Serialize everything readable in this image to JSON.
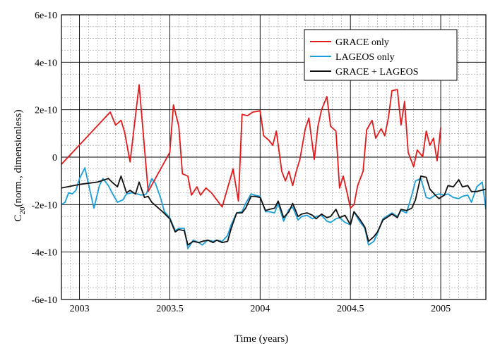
{
  "chart_data": {
    "type": "line",
    "xlabel": "Time (years)",
    "ylabel": "C20 (norm., dimensionless)",
    "ylabel_main": "C",
    "ylabel_sub": "20",
    "ylabel_rest": "(norm., dimensionless)",
    "xlim": [
      2002.9,
      2005.25
    ],
    "ylim": [
      -6e-10,
      6e-10
    ],
    "x_ticks": [
      2003,
      2003.5,
      2004,
      2004.5,
      2005
    ],
    "x_tick_labels": [
      "2003",
      "2003.5",
      "2004",
      "2004.5",
      "2005"
    ],
    "y_ticks": [
      6e-10,
      4e-10,
      2e-10,
      0,
      -2e-10,
      -4e-10,
      -6e-10
    ],
    "y_tick_labels": [
      "6e-10",
      "4e-10",
      "2e-10",
      "0",
      "-2e-10",
      "-4e-10",
      "-6e-10"
    ],
    "grid": true,
    "legend_position": "top-right",
    "series": [
      {
        "name": "GRACE only",
        "color": "#e31a1c",
        "x": [
          2002.9,
          2003.17,
          2003.2,
          2003.23,
          2003.25,
          2003.28,
          2003.33,
          2003.38,
          2003.5,
          2003.52,
          2003.55,
          2003.57,
          2003.6,
          2003.62,
          2003.65,
          2003.67,
          2003.7,
          2003.73,
          2003.76,
          2003.79,
          2003.82,
          2003.85,
          2003.88,
          2003.9,
          2003.93,
          2003.96,
          2004.0,
          2004.02,
          2004.05,
          2004.07,
          2004.09,
          2004.12,
          2004.14,
          2004.16,
          2004.18,
          2004.2,
          2004.22,
          2004.25,
          2004.27,
          2004.3,
          2004.32,
          2004.34,
          2004.37,
          2004.39,
          2004.42,
          2004.44,
          2004.46,
          2004.48,
          2004.5,
          2004.52,
          2004.54,
          2004.57,
          2004.59,
          2004.62,
          2004.64,
          2004.67,
          2004.69,
          2004.71,
          2004.73,
          2004.76,
          2004.78,
          2004.8,
          2004.82,
          2004.85,
          2004.87,
          2004.9,
          2004.92,
          2004.94,
          2004.96,
          2004.98,
          2005.0,
          2005.02,
          2005.05,
          2005.07,
          2005.09,
          2005.11,
          2005.14,
          2005.16,
          2005.18
        ],
        "values": [
          -3e-11,
          1.9e-10,
          1.35e-10,
          1.55e-10,
          1.05e-10,
          -2e-11,
          3.05e-10,
          -1.45e-10,
          2e-11,
          2.2e-10,
          1.3e-10,
          -7e-11,
          -8e-11,
          -1.6e-10,
          -1.25e-10,
          -1.6e-10,
          -1.3e-10,
          -1.5e-10,
          -1.8e-10,
          -2.1e-10,
          -1.3e-10,
          -5e-11,
          -1.85e-10,
          1.8e-10,
          1.75e-10,
          1.9e-10,
          1.95e-10,
          9e-11,
          7e-11,
          5e-11,
          1.1e-10,
          -6e-11,
          -1e-10,
          -6e-11,
          -1.2e-10,
          -6e-11,
          -1e-11,
          1.2e-10,
          1.65e-10,
          -1e-11,
          1.3e-10,
          2e-10,
          2.55e-10,
          1.3e-10,
          1.1e-10,
          -1.3e-10,
          -8e-11,
          -1.45e-10,
          -2.15e-10,
          -2e-10,
          -1.2e-10,
          -6e-11,
          1.15e-10,
          1.55e-10,
          8e-11,
          1.2e-10,
          9e-11,
          1.65e-10,
          2.8e-10,
          2.85e-10,
          1.35e-10,
          2.35e-10,
          2e-11,
          -4e-11,
          3e-11,
          2e-12,
          1.1e-10,
          5e-11,
          8e-11,
          -1.5e-11,
          1.25e-10,
          null,
          null,
          null,
          null,
          null,
          null,
          null,
          null
        ]
      },
      {
        "name": "LAGEOS only",
        "color": "#1a9fd9",
        "x": [
          2002.9,
          2002.92,
          2002.94,
          2002.96,
          2002.98,
          2003.0,
          2003.03,
          2003.05,
          2003.08,
          2003.11,
          2003.13,
          2003.16,
          2003.18,
          2003.21,
          2003.24,
          2003.26,
          2003.29,
          2003.32,
          2003.34,
          2003.37,
          2003.4,
          2003.42,
          2003.45,
          2003.47,
          2003.5,
          2003.53,
          2003.55,
          2003.58,
          2003.6,
          2003.63,
          2003.66,
          2003.68,
          2003.71,
          2003.74,
          2003.76,
          2003.79,
          2003.82,
          2003.84,
          2003.87,
          2003.9,
          2003.92,
          2003.95,
          2003.97,
          2004.0,
          2004.03,
          2004.05,
          2004.08,
          2004.1,
          2004.13,
          2004.16,
          2004.18,
          2004.21,
          2004.23,
          2004.26,
          2004.29,
          2004.31,
          2004.34,
          2004.37,
          2004.39,
          2004.42,
          2004.44,
          2004.47,
          2004.5,
          2004.52,
          2004.55,
          2004.58,
          2004.6,
          2004.63,
          2004.65,
          2004.68,
          2004.71,
          2004.73,
          2004.76,
          2004.78,
          2004.81,
          2004.84,
          2004.86,
          2004.89,
          2004.92,
          2004.94,
          2004.97,
          2004.99,
          2005.02,
          2005.04,
          2005.07,
          2005.1,
          2005.12,
          2005.15,
          2005.17,
          2005.2,
          2005.23,
          2005.25
        ],
        "values": [
          -2e-10,
          -1.9e-10,
          -1.5e-10,
          -1.55e-10,
          -1.4e-10,
          -9e-11,
          -4.5e-11,
          -1.15e-10,
          -2.15e-10,
          -1.2e-10,
          -9e-11,
          -1.2e-10,
          -1.5e-10,
          -1.9e-10,
          -1.8e-10,
          -1.55e-10,
          -1.5e-10,
          -1.55e-10,
          -1.6e-10,
          -1.55e-10,
          -9e-11,
          -1.1e-10,
          -1.75e-10,
          -2.3e-10,
          -2.55e-10,
          -3.1e-10,
          -3e-10,
          -3e-10,
          -3.85e-10,
          -3.5e-10,
          -3.6e-10,
          -3.7e-10,
          -3.5e-10,
          -3.55e-10,
          -3.5e-10,
          -3.55e-10,
          -3.3e-10,
          -2.85e-10,
          -2.35e-10,
          -2.3e-10,
          -1.95e-10,
          -1.55e-10,
          -1.6e-10,
          -1.65e-10,
          -2.3e-10,
          -2.3e-10,
          -2.35e-10,
          -1.95e-10,
          -2.7e-10,
          -2.2e-10,
          -2.1e-10,
          -2.65e-10,
          -2.5e-10,
          -2.45e-10,
          -2.6e-10,
          -2.5e-10,
          -2.45e-10,
          -2.7e-10,
          -2.75e-10,
          -2.6e-10,
          -2.55e-10,
          -2.75e-10,
          -2.85e-10,
          -2.3e-10,
          -2.7e-10,
          -3e-10,
          -3.7e-10,
          -3.55e-10,
          -3.2e-10,
          -2.6e-10,
          -2.45e-10,
          -2.35e-10,
          -2.5e-10,
          -2.25e-10,
          -2.35e-10,
          -1.6e-10,
          -1e-10,
          -9e-11,
          -1.7e-10,
          -1.75e-10,
          -1.6e-10,
          -1.55e-10,
          -1.6e-10,
          -1.55e-10,
          -1.7e-10,
          -1.75e-10,
          -1.65e-10,
          -1.6e-10,
          -1.9e-10,
          -1.25e-10,
          -1.05e-10,
          -2.2e-10
        ]
      },
      {
        "name": "GRACE + LAGEOS",
        "color": "#111111",
        "x": [
          2002.9,
          2003.0,
          2003.1,
          2003.16,
          2003.18,
          2003.21,
          2003.23,
          2003.26,
          2003.28,
          2003.31,
          2003.33,
          2003.36,
          2003.38,
          2003.4,
          2003.43,
          2003.46,
          2003.48,
          2003.5,
          2003.53,
          2003.55,
          2003.58,
          2003.6,
          2003.63,
          2003.66,
          2003.68,
          2003.71,
          2003.74,
          2003.76,
          2003.79,
          2003.82,
          2003.84,
          2003.87,
          2003.9,
          2003.92,
          2003.95,
          2003.97,
          2004.0,
          2004.03,
          2004.05,
          2004.08,
          2004.1,
          2004.13,
          2004.16,
          2004.18,
          2004.21,
          2004.23,
          2004.26,
          2004.29,
          2004.31,
          2004.34,
          2004.37,
          2004.39,
          2004.42,
          2004.44,
          2004.47,
          2004.5,
          2004.52,
          2004.55,
          2004.58,
          2004.6,
          2004.63,
          2004.65,
          2004.68,
          2004.71,
          2004.73,
          2004.76,
          2004.78,
          2004.81,
          2004.84,
          2004.86,
          2004.89,
          2004.92,
          2004.94,
          2004.97,
          2004.99,
          2005.02,
          2005.04,
          2005.07,
          2005.1,
          2005.12,
          2005.15,
          2005.17,
          2005.2,
          2005.25
        ],
        "values": [
          -1.3e-10,
          -1.15e-10,
          -1.05e-10,
          -9e-11,
          -1.05e-10,
          -1.25e-10,
          -8e-11,
          -1.5e-10,
          -1.4e-10,
          -1.55e-10,
          -1.05e-10,
          -1.7e-10,
          -1.65e-10,
          -1.9e-10,
          -2.1e-10,
          -2.3e-10,
          -2.45e-10,
          -2.6e-10,
          -3.15e-10,
          -3.05e-10,
          -3.1e-10,
          -3.7e-10,
          -3.55e-10,
          -3.6e-10,
          -3.55e-10,
          -3.5e-10,
          -3.6e-10,
          -3.5e-10,
          -3.6e-10,
          -3.55e-10,
          -3e-10,
          -2.35e-10,
          -2.35e-10,
          -2.15e-10,
          -1.65e-10,
          -1.65e-10,
          -1.7e-10,
          -2.25e-10,
          -2.2e-10,
          -2.15e-10,
          -1.85e-10,
          -2.55e-10,
          -2.3e-10,
          -1.95e-10,
          -2.5e-10,
          -2.4e-10,
          -2.35e-10,
          -2.45e-10,
          -2.6e-10,
          -2.4e-10,
          -2.55e-10,
          -2.5e-10,
          -2.2e-10,
          -2.55e-10,
          -2.45e-10,
          -2.85e-10,
          -2.3e-10,
          -2.6e-10,
          -2.95e-10,
          -3.55e-10,
          -3.35e-10,
          -3.15e-10,
          -2.65e-10,
          -2.5e-10,
          -2.4e-10,
          -2.55e-10,
          -2.2e-10,
          -2.25e-10,
          -2.15e-10,
          -1.8e-10,
          -8e-11,
          -8.5e-11,
          -1.35e-10,
          -1.6e-10,
          -1.75e-10,
          -1.6e-10,
          -1.2e-10,
          -1.25e-10,
          -9.5e-11,
          -1.25e-10,
          -1.2e-10,
          -1.45e-10,
          -1.45e-10,
          -1.35e-10
        ]
      }
    ]
  }
}
